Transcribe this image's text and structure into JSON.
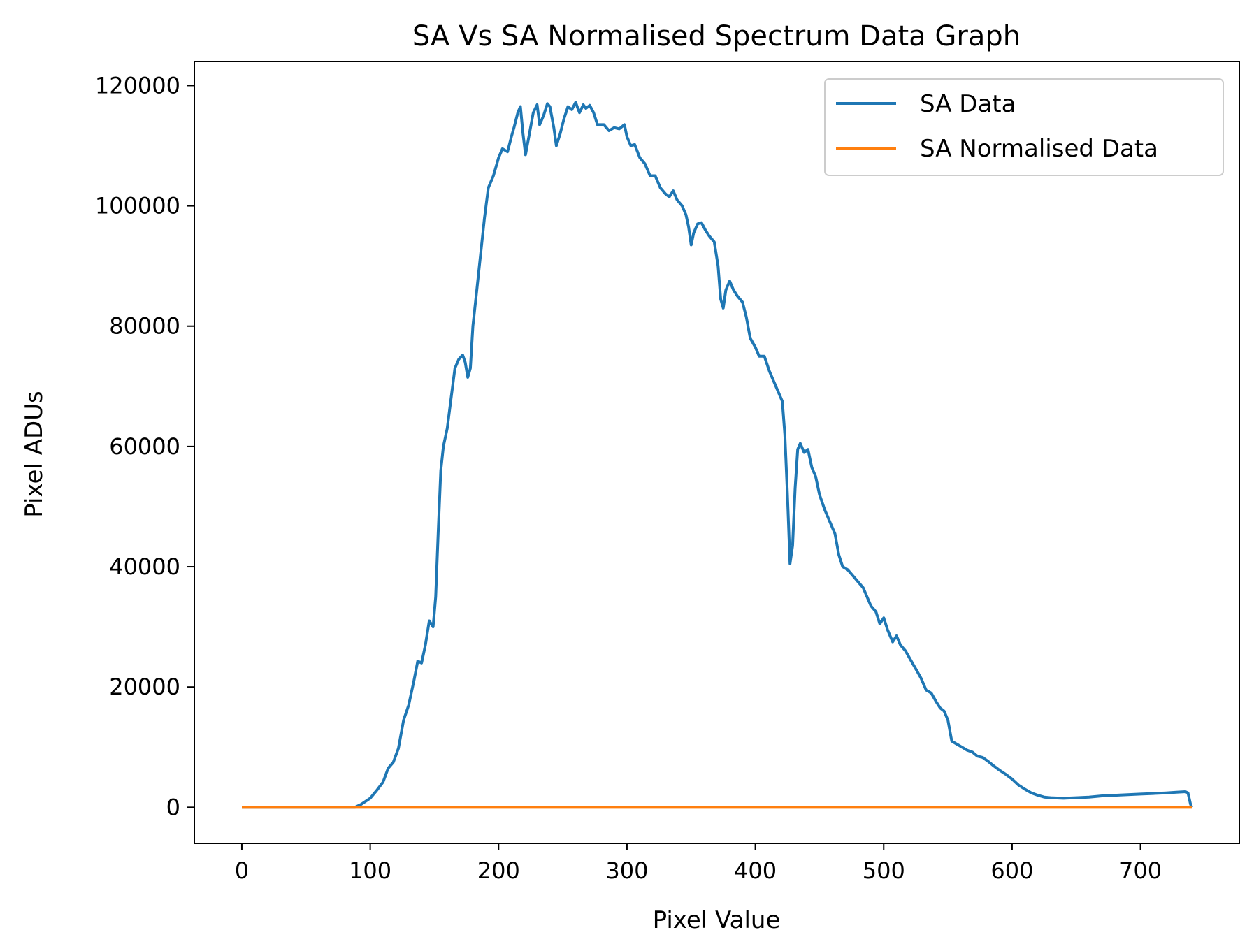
{
  "chart_data": {
    "type": "line",
    "title": "SA Vs SA Normalised Spectrum Data Graph",
    "xlabel": "Pixel Value",
    "ylabel": "Pixel ADUs",
    "xlim": [
      -37,
      777
    ],
    "ylim": [
      -6000,
      124000
    ],
    "xticks": [
      0,
      100,
      200,
      300,
      400,
      500,
      600,
      700
    ],
    "yticks": [
      0,
      20000,
      40000,
      60000,
      80000,
      100000,
      120000
    ],
    "grid": false,
    "legend_position": "upper right",
    "series": [
      {
        "name": "SA Data",
        "color": "#1f77b4",
        "points": [
          [
            0,
            0
          ],
          [
            30,
            0
          ],
          [
            60,
            0
          ],
          [
            88,
            0
          ],
          [
            93,
            500
          ],
          [
            100,
            1500
          ],
          [
            105,
            2800
          ],
          [
            110,
            4200
          ],
          [
            114,
            6500
          ],
          [
            118,
            7500
          ],
          [
            122,
            9800
          ],
          [
            126,
            14500
          ],
          [
            130,
            17000
          ],
          [
            134,
            21000
          ],
          [
            137,
            24300
          ],
          [
            140,
            24000
          ],
          [
            143,
            27000
          ],
          [
            146,
            31000
          ],
          [
            149,
            30000
          ],
          [
            151,
            35000
          ],
          [
            153,
            46000
          ],
          [
            155,
            56000
          ],
          [
            157,
            60000
          ],
          [
            160,
            63000
          ],
          [
            163,
            68000
          ],
          [
            166,
            73000
          ],
          [
            169,
            74500
          ],
          [
            172,
            75200
          ],
          [
            174,
            74000
          ],
          [
            176,
            71500
          ],
          [
            178,
            73000
          ],
          [
            180,
            80000
          ],
          [
            183,
            86000
          ],
          [
            186,
            92000
          ],
          [
            189,
            98000
          ],
          [
            192,
            103000
          ],
          [
            196,
            105000
          ],
          [
            200,
            108000
          ],
          [
            203,
            109500
          ],
          [
            207,
            109000
          ],
          [
            210,
            111500
          ],
          [
            212,
            113000
          ],
          [
            215,
            115500
          ],
          [
            217,
            116500
          ],
          [
            219,
            112000
          ],
          [
            221,
            108500
          ],
          [
            224,
            112000
          ],
          [
            227,
            115500
          ],
          [
            230,
            116800
          ],
          [
            232,
            113500
          ],
          [
            235,
            115000
          ],
          [
            238,
            117000
          ],
          [
            240,
            116500
          ],
          [
            243,
            113000
          ],
          [
            245,
            110000
          ],
          [
            248,
            112000
          ],
          [
            251,
            114500
          ],
          [
            254,
            116500
          ],
          [
            257,
            116000
          ],
          [
            260,
            117200
          ],
          [
            263,
            115500
          ],
          [
            266,
            116800
          ],
          [
            268,
            116200
          ],
          [
            271,
            116700
          ],
          [
            274,
            115500
          ],
          [
            277,
            113500
          ],
          [
            282,
            113500
          ],
          [
            286,
            112500
          ],
          [
            290,
            113000
          ],
          [
            294,
            112800
          ],
          [
            298,
            113500
          ],
          [
            300,
            111500
          ],
          [
            303,
            110000
          ],
          [
            306,
            110200
          ],
          [
            310,
            108000
          ],
          [
            314,
            107000
          ],
          [
            318,
            105000
          ],
          [
            322,
            105000
          ],
          [
            326,
            103000
          ],
          [
            330,
            102000
          ],
          [
            333,
            101500
          ],
          [
            336,
            102500
          ],
          [
            339,
            101000
          ],
          [
            343,
            100000
          ],
          [
            346,
            98500
          ],
          [
            348,
            96500
          ],
          [
            350,
            93500
          ],
          [
            352,
            95500
          ],
          [
            355,
            97000
          ],
          [
            358,
            97200
          ],
          [
            361,
            96000
          ],
          [
            364,
            95000
          ],
          [
            368,
            94000
          ],
          [
            371,
            90000
          ],
          [
            373,
            84500
          ],
          [
            375,
            83000
          ],
          [
            377,
            86000
          ],
          [
            380,
            87500
          ],
          [
            383,
            86000
          ],
          [
            386,
            85000
          ],
          [
            390,
            84000
          ],
          [
            393,
            81500
          ],
          [
            396,
            78000
          ],
          [
            400,
            76500
          ],
          [
            403,
            75000
          ],
          [
            407,
            75000
          ],
          [
            411,
            72500
          ],
          [
            414,
            71000
          ],
          [
            418,
            69000
          ],
          [
            421,
            67500
          ],
          [
            423,
            62000
          ],
          [
            425,
            52000
          ],
          [
            427,
            40500
          ],
          [
            429,
            43500
          ],
          [
            431,
            53000
          ],
          [
            433,
            59500
          ],
          [
            435,
            60500
          ],
          [
            438,
            59000
          ],
          [
            441,
            59500
          ],
          [
            444,
            56500
          ],
          [
            447,
            55000
          ],
          [
            450,
            52000
          ],
          [
            454,
            49500
          ],
          [
            458,
            47500
          ],
          [
            462,
            45500
          ],
          [
            465,
            42000
          ],
          [
            468,
            40000
          ],
          [
            472,
            39500
          ],
          [
            476,
            38500
          ],
          [
            480,
            37500
          ],
          [
            484,
            36500
          ],
          [
            487,
            35000
          ],
          [
            490,
            33500
          ],
          [
            494,
            32500
          ],
          [
            497,
            30500
          ],
          [
            500,
            31500
          ],
          [
            503,
            29500
          ],
          [
            507,
            27500
          ],
          [
            510,
            28500
          ],
          [
            513,
            27000
          ],
          [
            517,
            26000
          ],
          [
            521,
            24500
          ],
          [
            525,
            23000
          ],
          [
            529,
            21500
          ],
          [
            533,
            19500
          ],
          [
            537,
            19000
          ],
          [
            541,
            17500
          ],
          [
            544,
            16500
          ],
          [
            547,
            16000
          ],
          [
            550,
            14500
          ],
          [
            553,
            11000
          ],
          [
            557,
            10500
          ],
          [
            561,
            10000
          ],
          [
            565,
            9500
          ],
          [
            569,
            9200
          ],
          [
            573,
            8500
          ],
          [
            577,
            8300
          ],
          [
            581,
            7700
          ],
          [
            585,
            7000
          ],
          [
            590,
            6200
          ],
          [
            595,
            5500
          ],
          [
            600,
            4700
          ],
          [
            605,
            3700
          ],
          [
            610,
            3000
          ],
          [
            615,
            2400
          ],
          [
            620,
            2000
          ],
          [
            625,
            1700
          ],
          [
            630,
            1600
          ],
          [
            640,
            1500
          ],
          [
            650,
            1600
          ],
          [
            660,
            1700
          ],
          [
            670,
            1900
          ],
          [
            680,
            2000
          ],
          [
            690,
            2100
          ],
          [
            700,
            2200
          ],
          [
            710,
            2300
          ],
          [
            720,
            2400
          ],
          [
            728,
            2500
          ],
          [
            735,
            2600
          ],
          [
            737,
            2400
          ],
          [
            739,
            500
          ],
          [
            740,
            0
          ]
        ]
      },
      {
        "name": "SA Normalised Data",
        "color": "#ff7f0e",
        "points": [
          [
            0,
            0
          ],
          [
            740,
            0
          ]
        ]
      }
    ]
  }
}
